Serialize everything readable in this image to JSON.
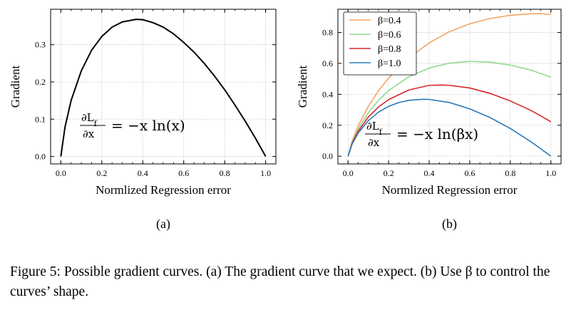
{
  "chart_data": [
    {
      "type": "line",
      "panel_label": "(a)",
      "xlabel": "Normlized Regression error",
      "ylabel": "Gradient",
      "xlim": [
        -0.05,
        1.05
      ],
      "ylim": [
        -0.02,
        0.395
      ],
      "x_ticks": [
        "0.0",
        "0.2",
        "0.4",
        "0.6",
        "0.8",
        "1.0"
      ],
      "y_ticks": [
        "0.0",
        "0.1",
        "0.2",
        "0.3"
      ],
      "grid": true,
      "annotation": "∂L_f/∂x = −x ln(x)",
      "series": [
        {
          "color": "#000000",
          "x": [
            0.0,
            0.02,
            0.05,
            0.1,
            0.15,
            0.2,
            0.25,
            0.3,
            0.368,
            0.4,
            0.45,
            0.5,
            0.55,
            0.6,
            0.65,
            0.7,
            0.75,
            0.8,
            0.85,
            0.9,
            0.95,
            1.0
          ],
          "y": [
            0.0,
            0.078,
            0.15,
            0.23,
            0.285,
            0.322,
            0.347,
            0.361,
            0.368,
            0.367,
            0.359,
            0.347,
            0.329,
            0.306,
            0.28,
            0.25,
            0.216,
            0.179,
            0.138,
            0.095,
            0.049,
            0.0
          ]
        }
      ]
    },
    {
      "type": "line",
      "panel_label": "(b)",
      "xlabel": "Normlized Regression error",
      "ylabel": "Gradient",
      "xlim": [
        -0.05,
        1.05
      ],
      "ylim": [
        -0.05,
        0.95
      ],
      "x_ticks": [
        "0.0",
        "0.2",
        "0.4",
        "0.6",
        "0.8",
        "1.0"
      ],
      "y_ticks": [
        "0.0",
        "0.2",
        "0.4",
        "0.6",
        "0.8"
      ],
      "grid": true,
      "legend_position": "top-left",
      "annotation": "∂L_f/∂x = −x ln(βx)",
      "series": [
        {
          "name": "β=0.4",
          "color": "#f5a460",
          "x": [
            0.0,
            0.02,
            0.05,
            0.1,
            0.15,
            0.2,
            0.3,
            0.4,
            0.5,
            0.6,
            0.7,
            0.8,
            0.9,
            0.95,
            1.0
          ],
          "y": [
            0.0,
            0.097,
            0.196,
            0.322,
            0.423,
            0.505,
            0.635,
            0.733,
            0.805,
            0.856,
            0.89,
            0.911,
            0.921,
            0.922,
            0.916
          ]
        },
        {
          "name": "β=0.6",
          "color": "#90d890",
          "x": [
            0.0,
            0.02,
            0.05,
            0.1,
            0.15,
            0.2,
            0.3,
            0.4,
            0.5,
            0.6,
            0.7,
            0.8,
            0.9,
            1.0
          ],
          "y": [
            0.0,
            0.088,
            0.175,
            0.281,
            0.361,
            0.424,
            0.514,
            0.57,
            0.602,
            0.613,
            0.608,
            0.589,
            0.557,
            0.511
          ]
        },
        {
          "name": "β=0.8",
          "color": "#d62728",
          "x": [
            0.0,
            0.02,
            0.05,
            0.1,
            0.15,
            0.2,
            0.3,
            0.4,
            0.46,
            0.5,
            0.6,
            0.7,
            0.8,
            0.9,
            1.0
          ],
          "y": [
            0.0,
            0.083,
            0.161,
            0.253,
            0.318,
            0.366,
            0.428,
            0.458,
            0.46,
            0.458,
            0.441,
            0.406,
            0.357,
            0.297,
            0.223
          ]
        },
        {
          "name": "β=1.0",
          "color": "#2979b9",
          "x": [
            0.0,
            0.02,
            0.05,
            0.1,
            0.15,
            0.2,
            0.25,
            0.3,
            0.368,
            0.4,
            0.5,
            0.6,
            0.7,
            0.8,
            0.9,
            1.0
          ],
          "y": [
            0.0,
            0.078,
            0.15,
            0.23,
            0.285,
            0.322,
            0.347,
            0.361,
            0.368,
            0.367,
            0.347,
            0.306,
            0.25,
            0.179,
            0.095,
            0.0
          ]
        }
      ]
    }
  ],
  "caption": {
    "figure_label": "Figure 5:",
    "text": "Possible gradient curves. (a) The gradient curve that we expect. (b) Use β to control the curves’ shape."
  }
}
